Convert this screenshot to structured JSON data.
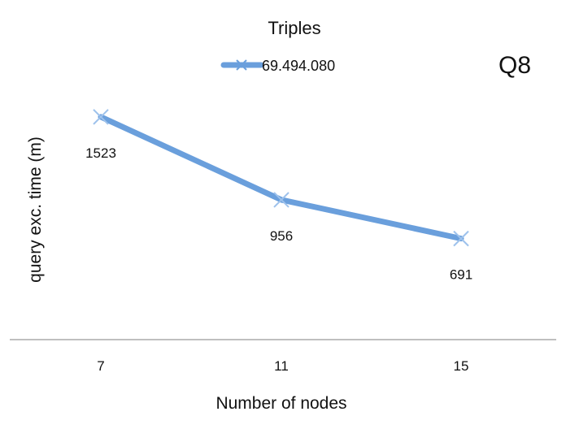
{
  "chart_data": {
    "type": "line",
    "title": "",
    "legend_title": "Triples",
    "corner_label": "Q8",
    "xlabel": "Number of nodes",
    "ylabel": "query exc. time (m)",
    "categories": [
      "7",
      "11",
      "15"
    ],
    "series": [
      {
        "name": "69.494.080",
        "values": [
          1523,
          956,
          691
        ],
        "color": "#6a9fdc",
        "marker": "x"
      }
    ],
    "data_labels": [
      "1523",
      "956",
      "691"
    ],
    "y_range": [
      0,
      2000
    ],
    "y_axis_visible": false,
    "grid": false,
    "legend_position": "top-center"
  }
}
